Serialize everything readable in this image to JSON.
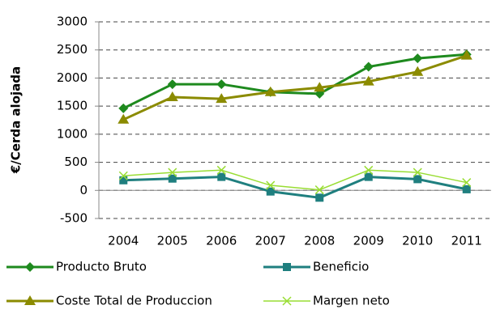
{
  "chart_data": {
    "type": "line",
    "y_label": "€/Cerda alojada",
    "categories": [
      "2004",
      "2005",
      "2006",
      "2007",
      "2008",
      "2009",
      "2010",
      "2011"
    ],
    "series": [
      {
        "name": "Producto Bruto",
        "color": "#1e8a1e",
        "marker": "diamond",
        "values": [
          1460,
          1890,
          1890,
          1750,
          1720,
          2200,
          2350,
          2420
        ]
      },
      {
        "name": "Beneficio",
        "color": "#1f7f7f",
        "marker": "square",
        "values": [
          180,
          210,
          240,
          -20,
          -130,
          240,
          200,
          20
        ]
      },
      {
        "name": "Coste Total de Produccion",
        "color": "#8b8b00",
        "marker": "triangle",
        "values": [
          1260,
          1660,
          1630,
          1750,
          1830,
          1940,
          2110,
          2400
        ]
      },
      {
        "name": "Margen neto",
        "color": "#99dd33",
        "marker": "x",
        "values": [
          260,
          320,
          360,
          90,
          10,
          360,
          320,
          140
        ]
      }
    ],
    "ylim": [
      -500,
      3000
    ],
    "yticks": [
      -500,
      0,
      500,
      1000,
      1500,
      2000,
      2500,
      3000
    ],
    "grid": true
  }
}
